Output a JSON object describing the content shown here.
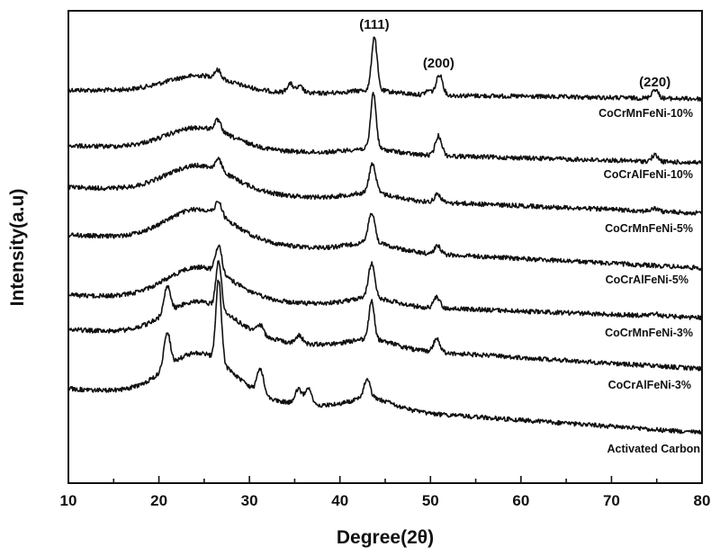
{
  "chart_data": {
    "type": "line",
    "title": "",
    "xlabel": "Degree(2θ)",
    "ylabel": "Intensity(a.u)",
    "xlim": [
      10,
      80
    ],
    "xticks": [
      10,
      20,
      30,
      40,
      50,
      60,
      70,
      80
    ],
    "y_ticks_shown": false,
    "grid": false,
    "legend": "none (series labelled under each curve on the right)",
    "line_color": "#111111",
    "peak_annotations": [
      {
        "label": "(111)",
        "x": 43.8
      },
      {
        "label": "(200)",
        "x": 50.9
      },
      {
        "label": "(220)",
        "x": 74.8
      }
    ],
    "series": [
      {
        "name": "CoCrMnFeNi-10%",
        "peaks": [
          [
            26.5,
            0.09
          ],
          [
            34.5,
            0.1
          ],
          [
            35.6,
            0.07
          ],
          [
            43.8,
            0.6
          ],
          [
            49.8,
            0.05
          ],
          [
            51.0,
            0.23
          ],
          [
            74.8,
            0.1
          ]
        ]
      },
      {
        "name": "CoCrAlFeNi-10%",
        "peaks": [
          [
            26.5,
            0.12
          ],
          [
            43.7,
            0.62
          ],
          [
            50.9,
            0.22
          ],
          [
            74.8,
            0.07
          ]
        ]
      },
      {
        "name": "CoCrMnFeNi-5%",
        "peaks": [
          [
            26.6,
            0.12
          ],
          [
            43.6,
            0.33
          ],
          [
            50.8,
            0.09
          ],
          [
            74.8,
            0.03
          ]
        ]
      },
      {
        "name": "CoCrAlFeNi-5%",
        "peaks": [
          [
            26.6,
            0.15
          ],
          [
            43.5,
            0.34
          ],
          [
            50.8,
            0.09
          ]
        ]
      },
      {
        "name": "CoCrMnFeNi-3%",
        "peaks": [
          [
            26.6,
            0.3
          ],
          [
            43.5,
            0.38
          ],
          [
            50.7,
            0.12
          ],
          [
            74.8,
            0.03
          ]
        ]
      },
      {
        "name": "CoCrAlFeNi-3%",
        "peaks": [
          [
            20.9,
            0.3
          ],
          [
            26.6,
            0.52
          ],
          [
            31.2,
            0.11
          ],
          [
            35.5,
            0.09
          ],
          [
            43.5,
            0.42
          ],
          [
            50.7,
            0.15
          ]
        ]
      },
      {
        "name": "Activated Carbon",
        "peaks": [
          [
            20.9,
            0.4
          ],
          [
            26.6,
            0.9
          ],
          [
            31.2,
            0.28
          ],
          [
            35.4,
            0.17
          ],
          [
            36.5,
            0.2
          ],
          [
            43.0,
            0.22
          ]
        ]
      }
    ]
  }
}
